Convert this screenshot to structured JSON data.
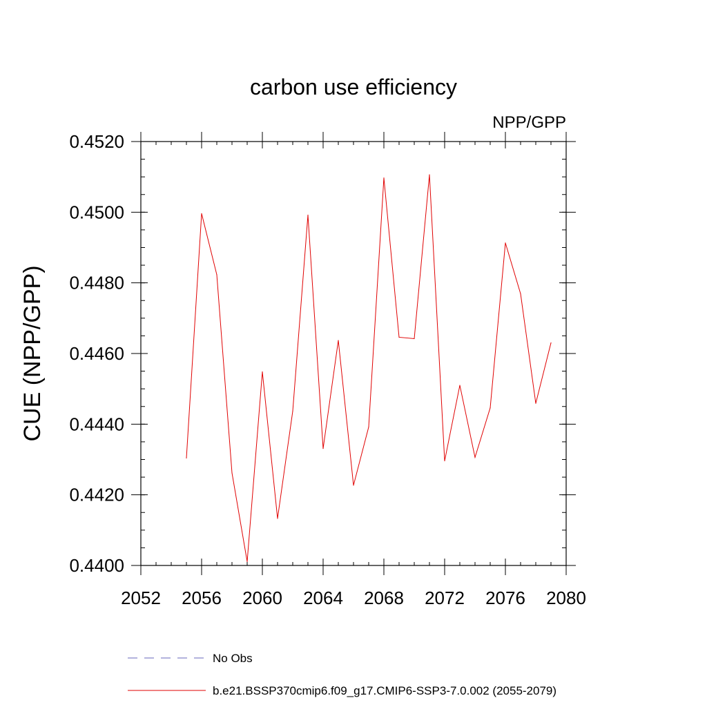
{
  "chart_data": {
    "type": "line",
    "title": "carbon use efficiency",
    "subtitle": "NPP/GPP",
    "ylabel": "CUE  (NPP/GPP)",
    "xlabel": "",
    "xlim": [
      2052,
      2080
    ],
    "ylim": [
      0.44,
      0.452
    ],
    "x_ticks": [
      2052,
      2056,
      2060,
      2064,
      2068,
      2072,
      2076,
      2080
    ],
    "y_ticks": [
      "0.4400",
      "0.4420",
      "0.4440",
      "0.4460",
      "0.4480",
      "0.4500",
      "0.4520"
    ],
    "x": [
      2055,
      2056,
      2057,
      2058,
      2059,
      2060,
      2061,
      2062,
      2063,
      2064,
      2065,
      2066,
      2067,
      2068,
      2069,
      2070,
      2071,
      2072,
      2073,
      2074,
      2075,
      2076,
      2077,
      2078,
      2079
    ],
    "series": [
      {
        "name": "b.e21.BSSP370cmip6.f09_g17.CMIP6-SSP3-7.0.002 (2055-2079)",
        "color": "#e00000",
        "values": [
          0.44304,
          0.44996,
          0.44823,
          0.44262,
          0.44011,
          0.44548,
          0.44133,
          0.44437,
          0.44992,
          0.44331,
          0.44637,
          0.44227,
          0.44392,
          0.45097,
          0.44646,
          0.44642,
          0.45106,
          0.44296,
          0.4451,
          0.44306,
          0.44446,
          0.44913,
          0.44769,
          0.44459,
          0.4463
        ]
      }
    ],
    "legend": [
      {
        "label": "No Obs",
        "color": "#6666bb",
        "style": "dashed"
      },
      {
        "label": "b.e21.BSSP370cmip6.f09_g17.CMIP6-SSP3-7.0.002 (2055-2079)",
        "color": "#e00000",
        "style": "solid"
      }
    ],
    "legend_position": "bottom",
    "grid": false
  }
}
